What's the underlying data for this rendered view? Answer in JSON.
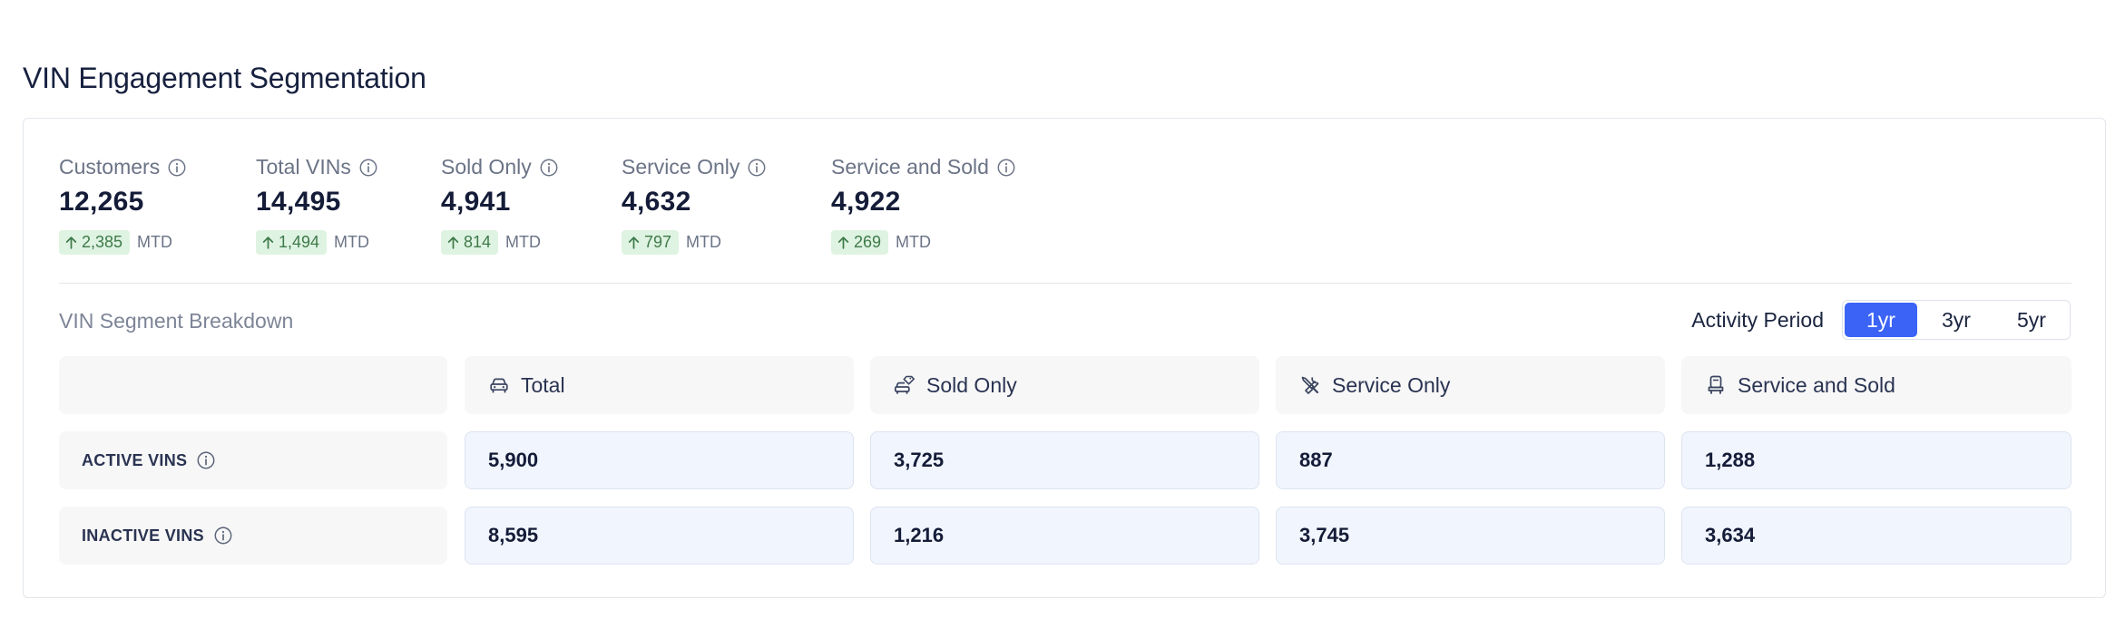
{
  "title": "VIN Engagement Segmentation",
  "stats": [
    {
      "label": "Customers",
      "value": "12,265",
      "delta": "2,385",
      "suffix": "MTD"
    },
    {
      "label": "Total VINs",
      "value": "14,495",
      "delta": "1,494",
      "suffix": "MTD"
    },
    {
      "label": "Sold Only",
      "value": "4,941",
      "delta": "814",
      "suffix": "MTD"
    },
    {
      "label": "Service Only",
      "value": "4,632",
      "delta": "797",
      "suffix": "MTD"
    },
    {
      "label": "Service and Sold",
      "value": "4,922",
      "delta": "269",
      "suffix": "MTD"
    }
  ],
  "breakdown": {
    "title": "VIN Segment Breakdown",
    "period_label": "Activity Period",
    "periods": [
      "1yr",
      "3yr",
      "5yr"
    ],
    "selected_period": "1yr",
    "columns": [
      {
        "label": "Total",
        "icon": "car-icon"
      },
      {
        "label": "Sold Only",
        "icon": "car-tag-icon"
      },
      {
        "label": "Service Only",
        "icon": "tools-icon"
      },
      {
        "label": "Service and Sold",
        "icon": "car-seat-icon"
      }
    ],
    "rows": [
      {
        "label": "ACTIVE VINS",
        "values": [
          "5,900",
          "3,725",
          "887",
          "1,288"
        ]
      },
      {
        "label": "INACTIVE VINS",
        "values": [
          "8,595",
          "1,216",
          "3,745",
          "3,634"
        ]
      }
    ]
  },
  "colors": {
    "accent": "#3b63f6",
    "delta_bg": "#dff3e2",
    "delta_text": "#3e7a4a"
  }
}
